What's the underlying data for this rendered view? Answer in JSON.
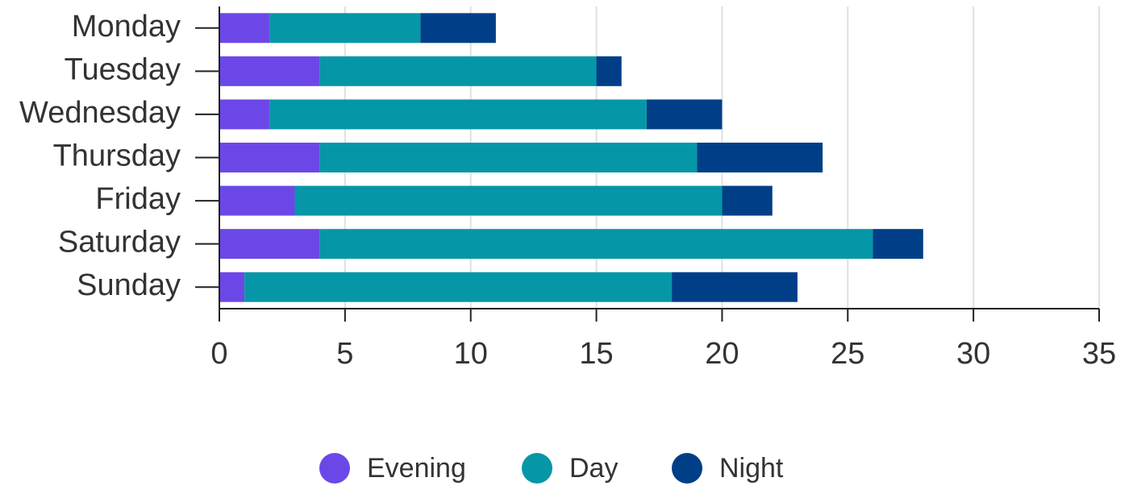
{
  "chart_data": {
    "type": "bar",
    "orientation": "horizontal",
    "stacked": true,
    "categories": [
      "Monday",
      "Tuesday",
      "Wednesday",
      "Thursday",
      "Friday",
      "Saturday",
      "Sunday"
    ],
    "series": [
      {
        "name": "Evening",
        "color": "#6c47e8",
        "values": [
          2,
          4,
          2,
          4,
          3,
          4,
          1
        ]
      },
      {
        "name": "Day",
        "color": "#0597a7",
        "values": [
          6,
          11,
          15,
          15,
          17,
          22,
          17
        ]
      },
      {
        "name": "Night",
        "color": "#003f87",
        "values": [
          3,
          1,
          3,
          5,
          2,
          2,
          5
        ]
      }
    ],
    "xlim": [
      0,
      35
    ],
    "xticks": [
      0,
      5,
      10,
      15,
      20,
      25,
      30,
      35
    ],
    "grid": true,
    "legend": "bottom"
  }
}
